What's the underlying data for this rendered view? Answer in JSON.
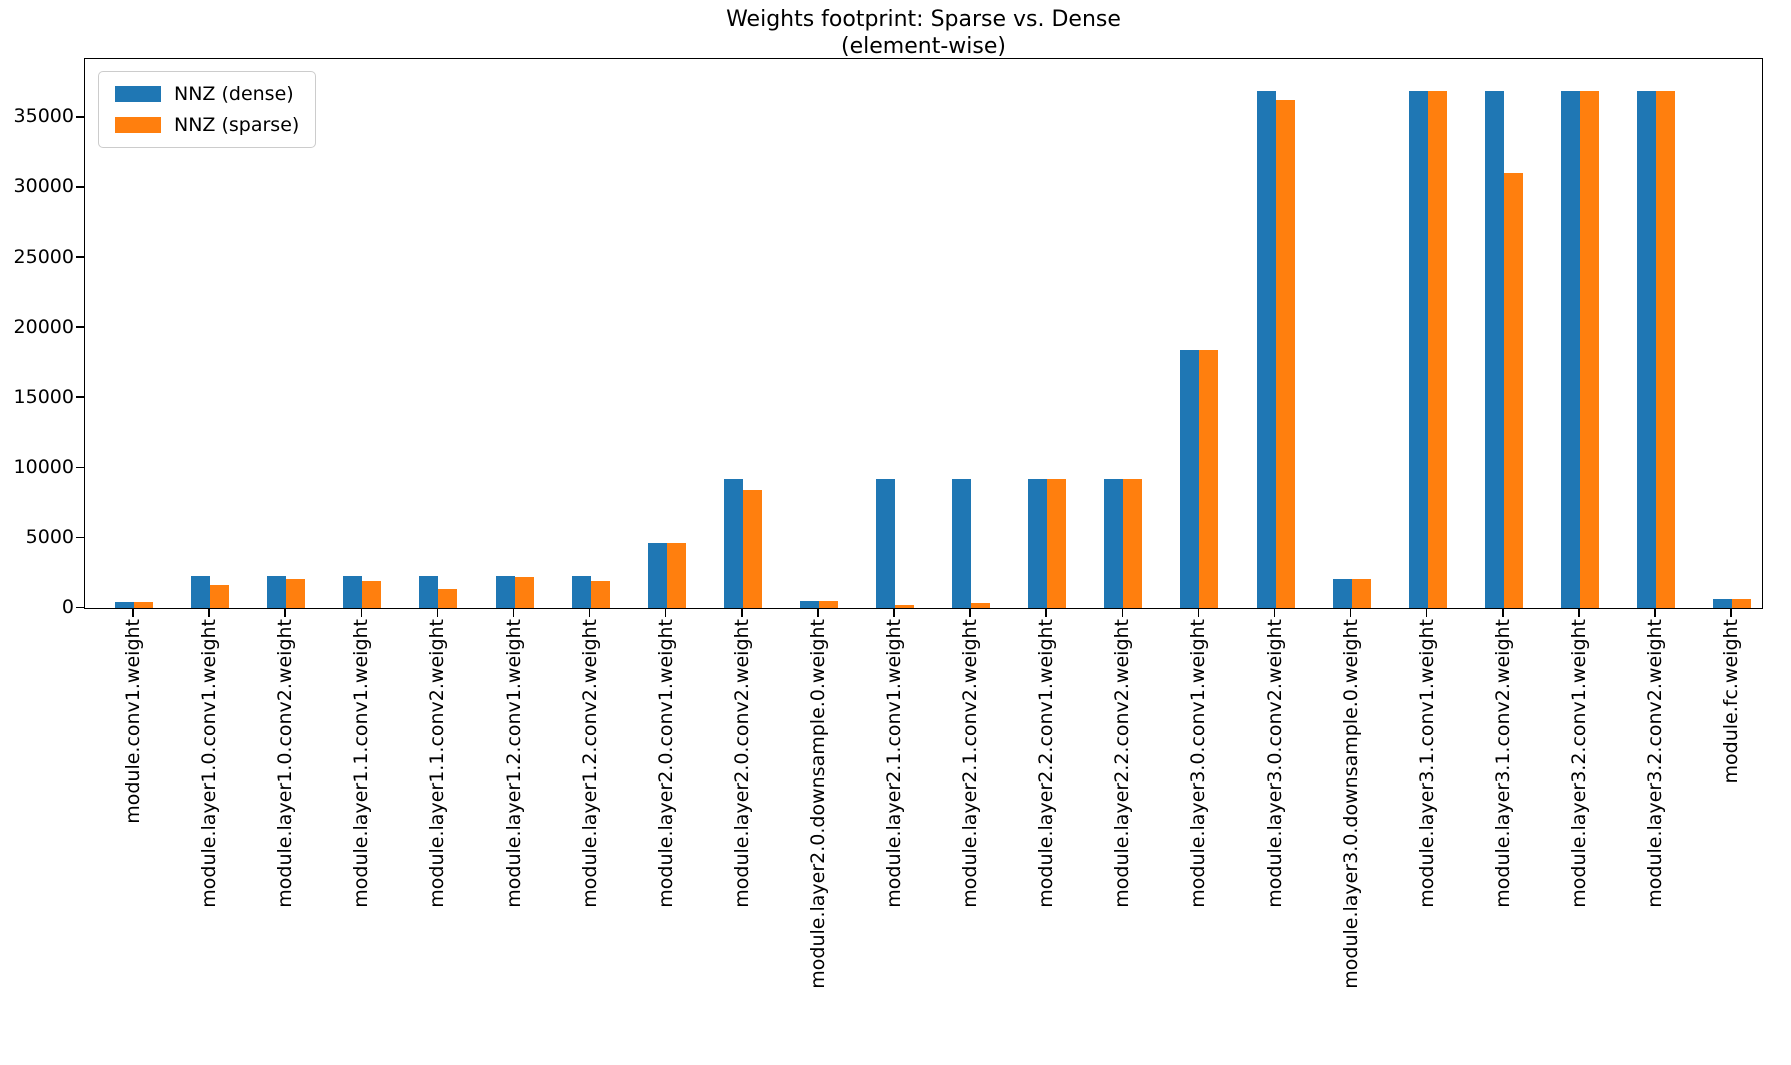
{
  "chart_data": {
    "type": "bar",
    "title": "Weights footprint: Sparse vs. Dense",
    "subtitle": "(element-wise)",
    "categories": [
      "module.conv1.weight",
      "module.layer1.0.conv1.weight",
      "module.layer1.0.conv2.weight",
      "module.layer1.1.conv1.weight",
      "module.layer1.1.conv2.weight",
      "module.layer1.2.conv1.weight",
      "module.layer1.2.conv2.weight",
      "module.layer2.0.conv1.weight",
      "module.layer2.0.conv2.weight",
      "module.layer2.0.downsample.0.weight",
      "module.layer2.1.conv1.weight",
      "module.layer2.1.conv2.weight",
      "module.layer2.2.conv1.weight",
      "module.layer2.2.conv2.weight",
      "module.layer3.0.conv1.weight",
      "module.layer3.0.conv2.weight",
      "module.layer3.0.downsample.0.weight",
      "module.layer3.1.conv1.weight",
      "module.layer3.1.conv2.weight",
      "module.layer3.2.conv1.weight",
      "module.layer3.2.conv2.weight",
      "module.fc.weight"
    ],
    "series": [
      {
        "name": "NNZ (dense)",
        "color": "#1f77b4",
        "values": [
          432,
          2304,
          2304,
          2304,
          2304,
          2304,
          2304,
          4608,
          9216,
          512,
          9216,
          9216,
          9216,
          9216,
          18432,
          36864,
          2048,
          36864,
          36864,
          36864,
          36864,
          640
        ]
      },
      {
        "name": "NNZ (sparse)",
        "color": "#ff7f0e",
        "values": [
          432,
          1620,
          2050,
          1950,
          1370,
          2200,
          1900,
          4608,
          8400,
          512,
          250,
          330,
          9216,
          9216,
          18432,
          36250,
          2048,
          36864,
          31050,
          36864,
          36864,
          640
        ]
      }
    ],
    "xlabel": "",
    "ylabel": "",
    "yticks": [
      0,
      5000,
      10000,
      15000,
      20000,
      25000,
      30000,
      35000
    ],
    "ylim": [
      0,
      39200
    ],
    "grid": false,
    "legend_position": "upper left"
  }
}
